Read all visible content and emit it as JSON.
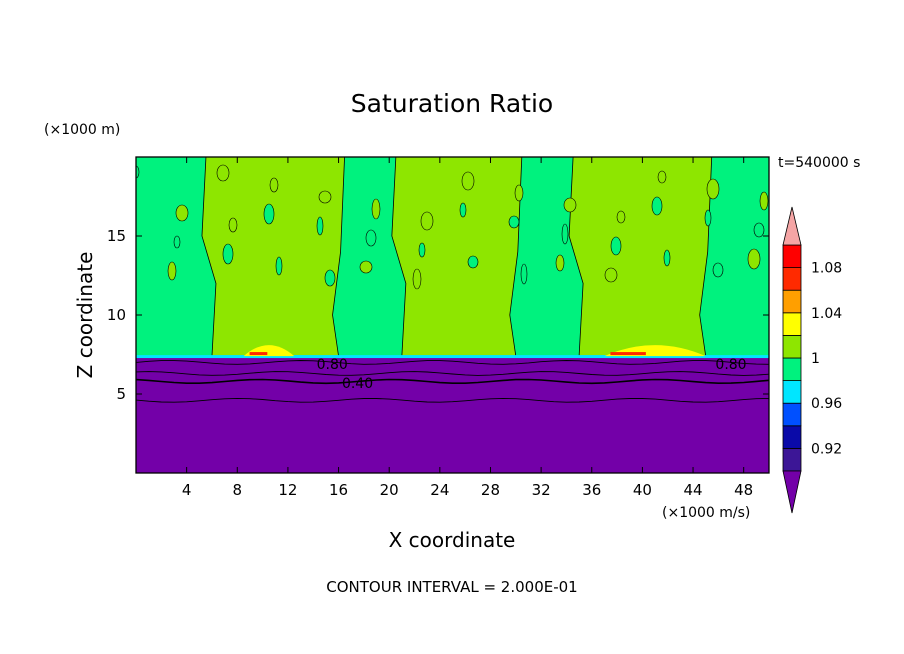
{
  "chart_data": {
    "type": "heatmap",
    "title": "Saturation Ratio",
    "xlabel": "X coordinate",
    "ylabel": "Z coordinate",
    "x_unit": "(×1000 m/s)",
    "y_unit": "(×1000 m)",
    "time_label": "t=540000 s",
    "footer": "CONTOUR INTERVAL = 2.000E-01",
    "xlim": [
      0,
      50
    ],
    "ylim": [
      0,
      20
    ],
    "x_ticks": [
      4,
      8,
      12,
      16,
      20,
      24,
      28,
      32,
      36,
      40,
      44,
      48
    ],
    "y_ticks": [
      5,
      10,
      15
    ],
    "contour_labels": [
      {
        "text": "0.80",
        "x": 15.5,
        "z": 6.9
      },
      {
        "text": "0.40",
        "x": 17.5,
        "z": 5.7
      },
      {
        "text": "0.80",
        "x": 47.0,
        "z": 6.9
      }
    ],
    "colorbar": {
      "labels": [
        "1.08",
        "1.04",
        "1",
        "0.96",
        "0.92"
      ],
      "label_levels": [
        1.08,
        1.04,
        1.0,
        0.96,
        0.92
      ],
      "levels": [
        0.9,
        0.92,
        0.94,
        0.96,
        0.98,
        1.0,
        1.02,
        1.04,
        1.06,
        1.08,
        1.1
      ],
      "colors": [
        "#3c1696",
        "#0a0aa8",
        "#0050ff",
        "#00e6ff",
        "#00f27e",
        "#8ee600",
        "#ffff00",
        "#ff9f00",
        "#ff2a00",
        "#ff0000"
      ],
      "under_color": "#7300a8",
      "over_color": "#f5a5a5"
    },
    "bands": {
      "low_color": "#7300a8",
      "mid_color": "#00f27e",
      "high_color": "#8ee600",
      "cloud_top_z": 7.4,
      "plumes_x": [
        [
          6,
          16
        ],
        [
          21,
          30
        ],
        [
          35,
          45
        ]
      ]
    }
  }
}
